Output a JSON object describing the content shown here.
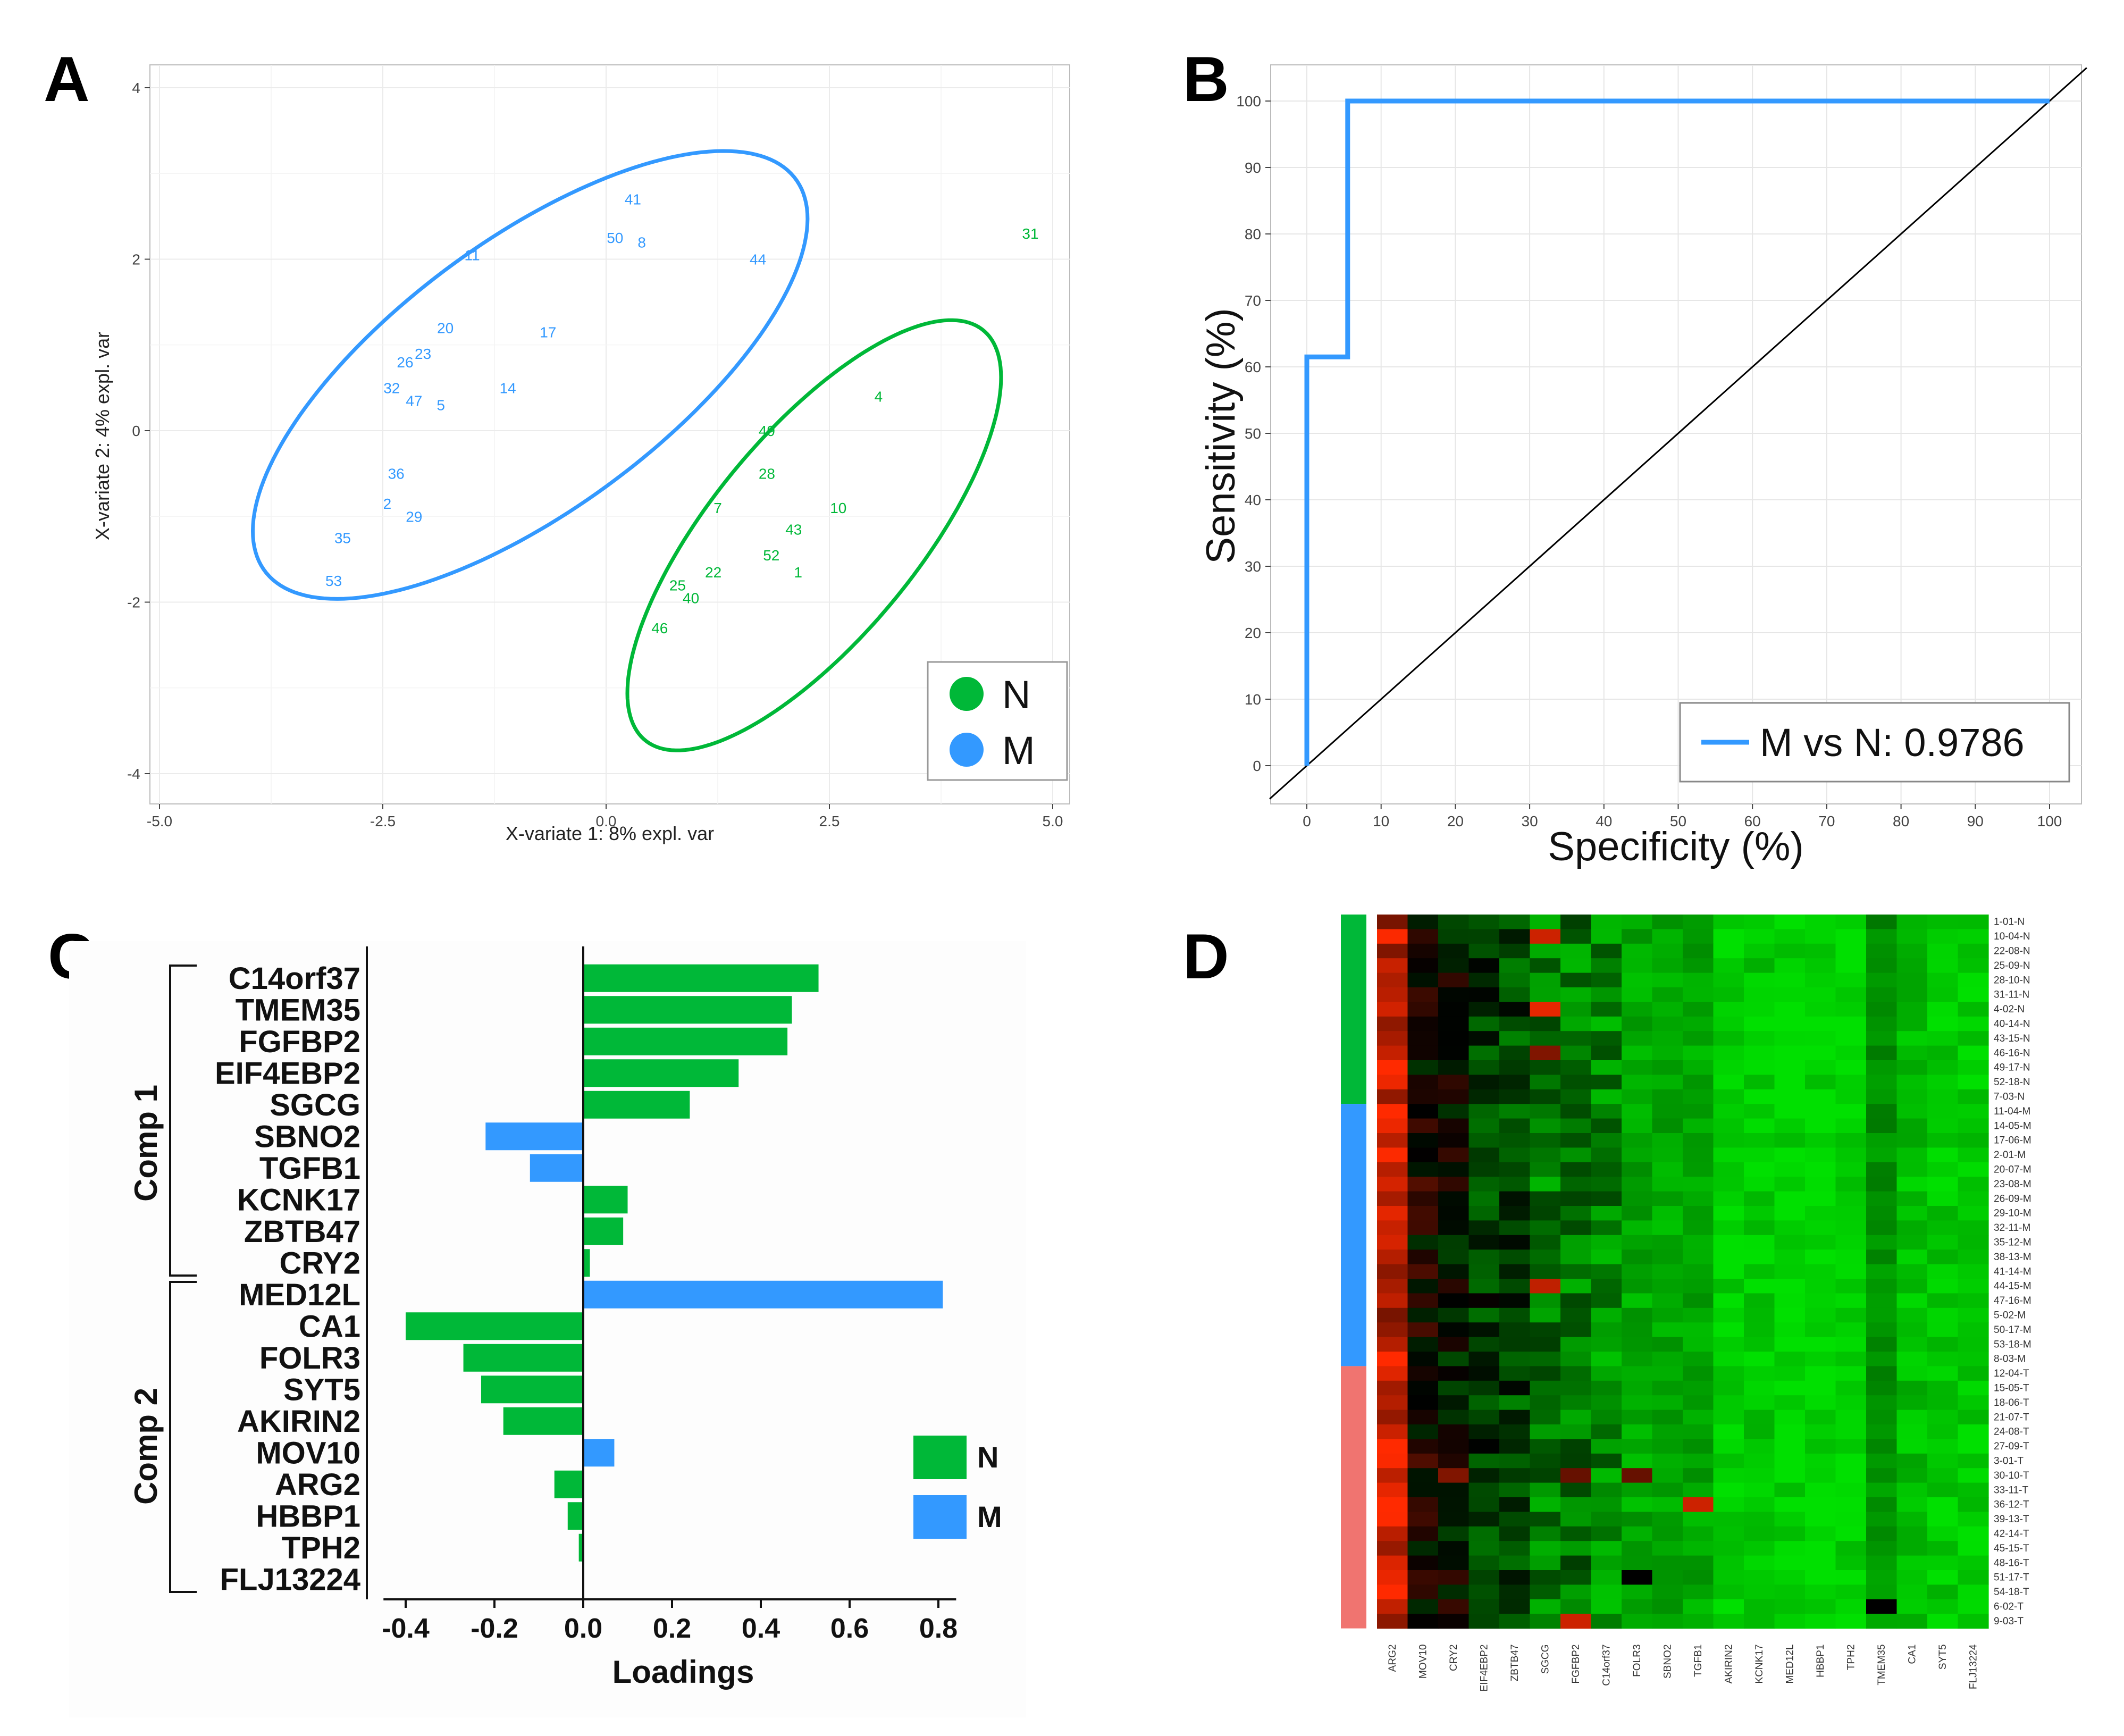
{
  "figure": {
    "panel_labels": [
      "A",
      "B",
      "C",
      "D"
    ]
  },
  "chart_data": [
    {
      "id": "A",
      "type": "scatter",
      "title": "",
      "xlabel": "X-variate 1: 8% expl. var",
      "ylabel": "X-variate 2: 4% expl. var",
      "xlim": [
        -5.0,
        5.0
      ],
      "ylim": [
        -4,
        4
      ],
      "xticks": [
        -5.0,
        -2.5,
        0.0,
        2.5,
        5.0
      ],
      "xtick_labels": [
        "-5.0",
        "-2.5",
        "0.0",
        "2.5",
        "5.0"
      ],
      "yticks": [
        -4,
        -2,
        0,
        2,
        4
      ],
      "ytick_labels": [
        "-4",
        "-2",
        "0",
        "2",
        "4"
      ],
      "colors": {
        "N": "#00b838",
        "M": "#3399ff"
      },
      "legend": [
        {
          "label": "N",
          "group": "N"
        },
        {
          "label": "M",
          "group": "M"
        }
      ],
      "points": [
        {
          "label": "41",
          "x": 0.3,
          "y": 2.7,
          "group": "M"
        },
        {
          "label": "50",
          "x": 0.1,
          "y": 2.25,
          "group": "M"
        },
        {
          "label": "8",
          "x": 0.4,
          "y": 2.2,
          "group": "M"
        },
        {
          "label": "44",
          "x": 1.7,
          "y": 2.0,
          "group": "M"
        },
        {
          "label": "11",
          "x": -1.5,
          "y": 2.05,
          "group": "M"
        },
        {
          "label": "20",
          "x": -1.8,
          "y": 1.2,
          "group": "M"
        },
        {
          "label": "17",
          "x": -0.65,
          "y": 1.15,
          "group": "M"
        },
        {
          "label": "23",
          "x": -2.05,
          "y": 0.9,
          "group": "M"
        },
        {
          "label": "26",
          "x": -2.25,
          "y": 0.8,
          "group": "M"
        },
        {
          "label": "32",
          "x": -2.4,
          "y": 0.5,
          "group": "M"
        },
        {
          "label": "47",
          "x": -2.15,
          "y": 0.35,
          "group": "M"
        },
        {
          "label": "5",
          "x": -1.85,
          "y": 0.3,
          "group": "M"
        },
        {
          "label": "14",
          "x": -1.1,
          "y": 0.5,
          "group": "M"
        },
        {
          "label": "36",
          "x": -2.35,
          "y": -0.5,
          "group": "M"
        },
        {
          "label": "2",
          "x": -2.45,
          "y": -0.85,
          "group": "M"
        },
        {
          "label": "29",
          "x": -2.15,
          "y": -1.0,
          "group": "M"
        },
        {
          "label": "35",
          "x": -2.95,
          "y": -1.25,
          "group": "M"
        },
        {
          "label": "53",
          "x": -3.05,
          "y": -1.75,
          "group": "M"
        },
        {
          "label": "31",
          "x": 4.75,
          "y": 2.3,
          "group": "N"
        },
        {
          "label": "4",
          "x": 3.05,
          "y": 0.4,
          "group": "N"
        },
        {
          "label": "49",
          "x": 1.8,
          "y": 0.0,
          "group": "N"
        },
        {
          "label": "28",
          "x": 1.8,
          "y": -0.5,
          "group": "N"
        },
        {
          "label": "10",
          "x": 2.6,
          "y": -0.9,
          "group": "N"
        },
        {
          "label": "7",
          "x": 1.25,
          "y": -0.9,
          "group": "N"
        },
        {
          "label": "43",
          "x": 2.1,
          "y": -1.15,
          "group": "N"
        },
        {
          "label": "52",
          "x": 1.85,
          "y": -1.45,
          "group": "N"
        },
        {
          "label": "1",
          "x": 2.15,
          "y": -1.65,
          "group": "N"
        },
        {
          "label": "22",
          "x": 1.2,
          "y": -1.65,
          "group": "N"
        },
        {
          "label": "25",
          "x": 0.8,
          "y": -1.8,
          "group": "N"
        },
        {
          "label": "40",
          "x": 0.95,
          "y": -1.95,
          "group": "N"
        },
        {
          "label": "46",
          "x": 0.6,
          "y": -2.3,
          "group": "N"
        }
      ],
      "ellipses": [
        {
          "group": "M",
          "center": [
            -0.85,
            0.65
          ],
          "semi_axes": [
            3.75,
            1.55
          ],
          "angle_deg": 38
        },
        {
          "group": "N",
          "center": [
            2.33,
            -1.22
          ],
          "semi_axes": [
            3.05,
            1.17
          ],
          "angle_deg": 52
        }
      ]
    },
    {
      "id": "B",
      "type": "line",
      "title": "",
      "xlabel": "Specificity (%)",
      "ylabel": "Sensitivity (%)",
      "xlim": [
        0,
        100
      ],
      "ylim": [
        0,
        100
      ],
      "xticks": [
        0,
        10,
        20,
        30,
        40,
        50,
        60,
        70,
        80,
        90,
        100
      ],
      "xtick_labels": [
        "0",
        "10",
        "20",
        "30",
        "40",
        "50",
        "60",
        "70",
        "80",
        "90",
        "100"
      ],
      "yticks": [
        0,
        10,
        20,
        30,
        40,
        50,
        60,
        70,
        80,
        90,
        100
      ],
      "ytick_labels": [
        "0",
        "10",
        "20",
        "30",
        "40",
        "50",
        "60",
        "70",
        "80",
        "90",
        "100"
      ],
      "series": [
        {
          "name": "M vs N: 0.9786",
          "color": "#3399ff",
          "x": [
            0,
            0,
            5.5,
            5.5,
            100
          ],
          "y": [
            0,
            61.5,
            61.5,
            100,
            100
          ]
        }
      ],
      "reference_line": {
        "x": [
          -5,
          105
        ],
        "y": [
          -5,
          105
        ],
        "color": "#000000"
      },
      "legend_text": "M vs N: 0.9786"
    },
    {
      "id": "C",
      "type": "bar",
      "orientation": "horizontal",
      "xlabel": "Loadings",
      "xlim": [
        -0.45,
        0.85
      ],
      "xticks": [
        -0.4,
        -0.2,
        0.0,
        0.2,
        0.4,
        0.6,
        0.8
      ],
      "xtick_labels": [
        "-0.4",
        "-0.2",
        "0.0",
        "0.2",
        "0.4",
        "0.6",
        "0.8"
      ],
      "categories": [
        "C14orf37",
        "TMEM35",
        "FGFBP2",
        "EIF4EBP2",
        "SGCG",
        "SBNO2",
        "TGFB1",
        "KCNK17",
        "ZBTB47",
        "CRY2",
        "MED12L",
        "CA1",
        "FOLR3",
        "SYT5",
        "AKIRIN2",
        "MOV10",
        "ARG2",
        "HBBP1",
        "TPH2",
        "FLJ13224"
      ],
      "values": [
        0.53,
        0.47,
        0.46,
        0.35,
        0.24,
        -0.22,
        -0.12,
        0.1,
        0.09,
        0.015,
        0.81,
        -0.4,
        -0.27,
        -0.23,
        -0.18,
        0.07,
        -0.065,
        -0.035,
        -0.01,
        0.0
      ],
      "groups": [
        "N",
        "N",
        "N",
        "N",
        "N",
        "M",
        "M",
        "N",
        "N",
        "N",
        "M",
        "N",
        "N",
        "N",
        "N",
        "M",
        "N",
        "N",
        "N",
        "N"
      ],
      "components": [
        {
          "label": "Comp 1",
          "first": 0,
          "last": 9
        },
        {
          "label": "Comp 2",
          "first": 10,
          "last": 19
        }
      ],
      "colors": {
        "N": "#00b838",
        "M": "#3399ff"
      },
      "legend": [
        {
          "label": "N",
          "group": "N"
        },
        {
          "label": "M",
          "group": "M"
        }
      ]
    },
    {
      "id": "D",
      "type": "heatmap",
      "columns": [
        "ARG2",
        "MOV10",
        "CRY2",
        "EIF4EBP2",
        "ZBTB47",
        "SGCG",
        "FGFBP2",
        "C14orf37",
        "FOLR3",
        "SBNO2",
        "TGFB1",
        "AKIRIN2",
        "KCNK17",
        "MED12L",
        "HBBP1",
        "TPH2",
        "TMEM35",
        "CA1",
        "SYT5",
        "FLJ13224"
      ],
      "rows": [
        "1-01-N",
        "10-04-N",
        "22-08-N",
        "25-09-N",
        "28-10-N",
        "31-11-N",
        "4-02-N",
        "40-14-N",
        "43-15-N",
        "46-16-N",
        "49-17-N",
        "52-18-N",
        "7-03-N",
        "11-04-M",
        "14-05-M",
        "17-06-M",
        "2-01-M",
        "20-07-M",
        "23-08-M",
        "26-09-M",
        "29-10-M",
        "32-11-M",
        "35-12-M",
        "38-13-M",
        "41-14-M",
        "44-15-M",
        "47-16-M",
        "5-02-M",
        "50-17-M",
        "53-18-M",
        "8-03-M",
        "12-04-T",
        "15-05-T",
        "18-06-T",
        "21-07-T",
        "24-08-T",
        "27-09-T",
        "3-01-T",
        "30-10-T",
        "33-11-T",
        "36-12-T",
        "39-13-T",
        "42-14-T",
        "45-15-T",
        "48-16-T",
        "51-17-T",
        "54-18-T",
        "6-02-T",
        "9-03-T"
      ],
      "row_groups": [
        {
          "color": "#00b838",
          "count": 13
        },
        {
          "color": "#3399ff",
          "count": 18
        },
        {
          "color": "#f07470",
          "count": 18
        }
      ],
      "color_scale": {
        "low": "#00e000",
        "mid": "#000000",
        "high": "#ff2a00"
      },
      "column_levels": [
        0.75,
        0.05,
        -0.05,
        -0.25,
        -0.3,
        -0.55,
        -0.55,
        -0.6,
        -0.75,
        -0.75,
        -0.75,
        -0.95,
        -0.9,
        -0.95,
        -0.95,
        -0.95,
        -0.65,
        -0.85,
        -0.9,
        -0.92
      ],
      "highlights": [
        {
          "row": 1,
          "col": 5,
          "value": 0.8
        },
        {
          "row": 6,
          "col": 5,
          "value": 0.9
        },
        {
          "row": 9,
          "col": 5,
          "value": 0.5
        },
        {
          "row": 25,
          "col": 5,
          "value": 0.75
        },
        {
          "row": 38,
          "col": 2,
          "value": 0.5
        },
        {
          "row": 38,
          "col": 6,
          "value": 0.4
        },
        {
          "row": 38,
          "col": 8,
          "value": 0.4
        },
        {
          "row": 40,
          "col": 10,
          "value": 0.8
        },
        {
          "row": 45,
          "col": 8,
          "value": 0.0
        },
        {
          "row": 47,
          "col": 16,
          "value": 0.0
        },
        {
          "row": 48,
          "col": 6,
          "value": 0.8
        },
        {
          "row": 40,
          "col": 0,
          "value": 1.0
        },
        {
          "row": 46,
          "col": 0,
          "value": 1.0
        }
      ]
    }
  ]
}
